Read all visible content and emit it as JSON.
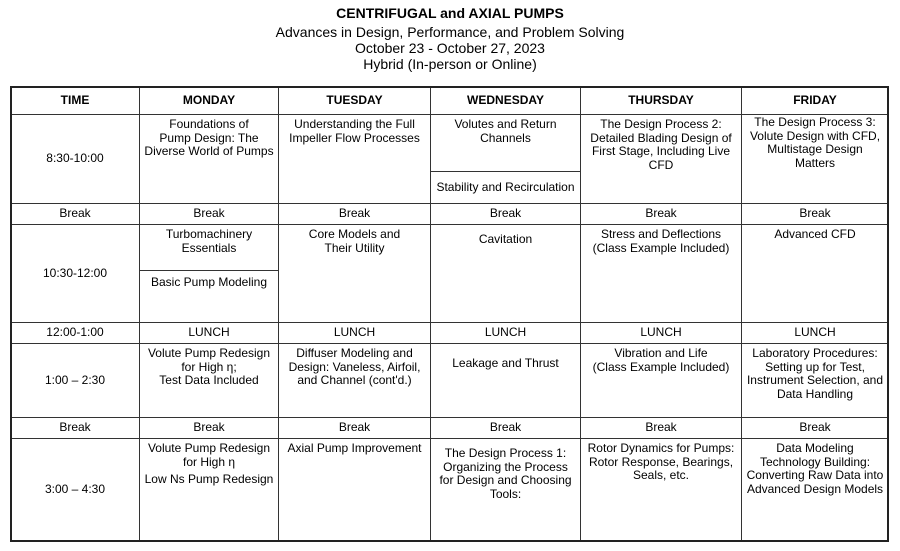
{
  "title": "CENTRIFUGAL and AXIAL PUMPS",
  "subtitle": "Advances in Design, Performance, and Problem Solving",
  "dates": "October 23 - October 27, 2023",
  "format": "Hybrid (In-person or Online)",
  "headers": [
    "TIME",
    "MONDAY",
    "TUESDAY",
    "WEDNESDAY",
    "THURSDAY",
    "FRIDAY"
  ],
  "times": [
    "8:30-10:00",
    "Break",
    "10:30-12:00",
    "12:00-1:00",
    "1:00 – 2:30",
    "Break",
    "3:00 – 4:30"
  ],
  "r1": {
    "mon": "Foundations of\nPump Design:  The Diverse World of Pumps",
    "tue": "Understanding the Full Impeller Flow Processes",
    "wed_a": "Volutes and Return Channels",
    "wed_b": "Stability and Recirculation",
    "thu": "The Design Process 2: Detailed Blading Design of First Stage, Including Live CFD",
    "fri": "The Design Process 3:\nVolute Design with CFD, Multistage Design Matters"
  },
  "break_label": "Break",
  "lunch_label": "LUNCH",
  "r2": {
    "mon_a": "Turbomachinery Essentials",
    "mon_b": "Basic Pump Modeling",
    "tue": "Core Models and\nTheir Utility",
    "wed": "Cavitation",
    "thu": "Stress and Deflections\n(Class Example Included)",
    "fri": "Advanced CFD"
  },
  "r3": {
    "mon": "Volute Pump Redesign\nfor High η;\nTest Data Included",
    "tue": "Diffuser Modeling and Design: Vaneless, Airfoil, and Channel (cont'd.)",
    "wed": "Leakage and Thrust",
    "thu": "Vibration and Life\n(Class Example Included)",
    "fri": "Laboratory Procedures: Setting up for Test, Instrument Selection, and Data Handling"
  },
  "r4": {
    "mon_a": "Volute Pump Redesign\nfor High η",
    "mon_b": "Low Ns Pump Redesign",
    "tue": "Axial Pump Improvement",
    "wed": "The Design Process 1: Organizing the Process for Design and Choosing Tools:",
    "thu": "Rotor Dynamics for Pumps: Rotor Response, Bearings, Seals, etc.",
    "fri": "Data Modeling Technology Building: Converting Raw Data into Advanced Design Models"
  }
}
